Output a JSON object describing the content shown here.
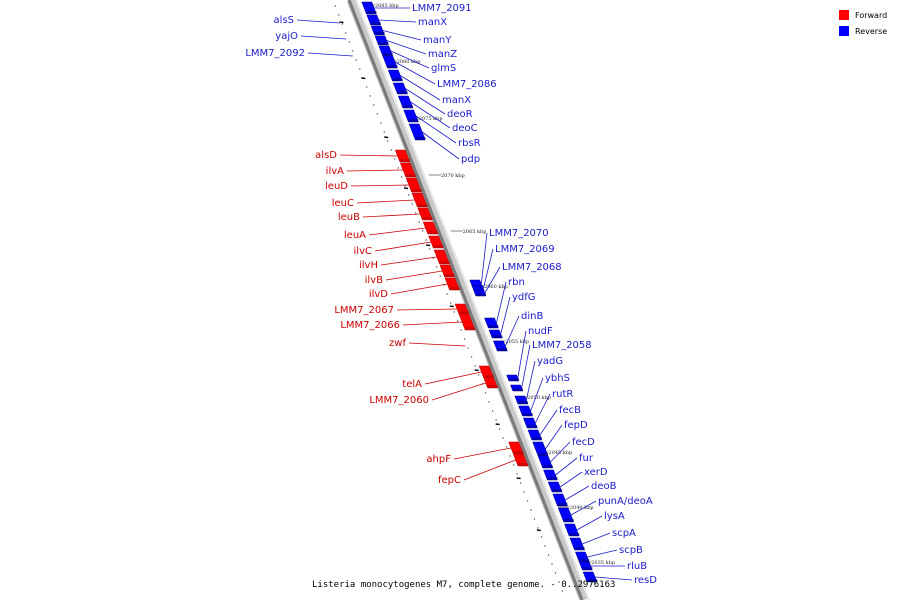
{
  "caption": "Listeria monocytogenes M7, complete genome. - 0..2976163",
  "legend": {
    "forward": {
      "label": "Forward",
      "color": "#ff0000"
    },
    "reverse": {
      "label": "Reverse",
      "color": "#0000ff"
    }
  },
  "colors": {
    "forward": "#ff0000",
    "forward_dark": "#b00000",
    "reverse": "#0000ff",
    "reverse_dark": "#00007a",
    "forward_label": "#cc0000",
    "reverse_label": "#1a1acc",
    "backbone": "#7a7a7a",
    "backbone_light": "#c8c8c8"
  },
  "ticks": [
    "2085 kbp",
    "2080 kbp",
    "2075 kbp",
    "2070 kbp",
    "2065 kbp",
    "2060 kbp",
    "2055 kbp",
    "2050 kbp",
    "2045 kbp",
    "2040 kbp",
    "2035 kbp"
  ],
  "genes": [
    {
      "name": "alsS",
      "strand": "left",
      "color": "reverse"
    },
    {
      "name": "yajO",
      "strand": "left",
      "color": "reverse"
    },
    {
      "name": "LMM7_2092",
      "strand": "left",
      "color": "reverse"
    },
    {
      "name": "LMM7_2091",
      "strand": "right",
      "color": "reverse"
    },
    {
      "name": "manX",
      "strand": "right",
      "color": "reverse"
    },
    {
      "name": "manY",
      "strand": "right",
      "color": "reverse"
    },
    {
      "name": "manZ",
      "strand": "right",
      "color": "reverse"
    },
    {
      "name": "glmS",
      "strand": "right",
      "color": "reverse"
    },
    {
      "name": "LMM7_2086",
      "strand": "right",
      "color": "reverse"
    },
    {
      "name": "manX",
      "strand": "right",
      "color": "reverse"
    },
    {
      "name": "deoR",
      "strand": "right",
      "color": "reverse"
    },
    {
      "name": "deoC",
      "strand": "right",
      "color": "reverse"
    },
    {
      "name": "rbsR",
      "strand": "right",
      "color": "reverse"
    },
    {
      "name": "pdp",
      "strand": "right",
      "color": "reverse"
    },
    {
      "name": "alsD",
      "strand": "left",
      "color": "forward"
    },
    {
      "name": "ilvA",
      "strand": "left",
      "color": "forward"
    },
    {
      "name": "leuD",
      "strand": "left",
      "color": "forward"
    },
    {
      "name": "leuC",
      "strand": "left",
      "color": "forward"
    },
    {
      "name": "leuB",
      "strand": "left",
      "color": "forward"
    },
    {
      "name": "leuA",
      "strand": "left",
      "color": "forward"
    },
    {
      "name": "ilvC",
      "strand": "left",
      "color": "forward"
    },
    {
      "name": "ilvH",
      "strand": "left",
      "color": "forward"
    },
    {
      "name": "ilvB",
      "strand": "left",
      "color": "forward"
    },
    {
      "name": "ilvD",
      "strand": "left",
      "color": "forward"
    },
    {
      "name": "LMM7_2070",
      "strand": "right",
      "color": "reverse"
    },
    {
      "name": "LMM7_2069",
      "strand": "right",
      "color": "reverse"
    },
    {
      "name": "LMM7_2068",
      "strand": "right",
      "color": "reverse"
    },
    {
      "name": "rbn",
      "strand": "right",
      "color": "reverse"
    },
    {
      "name": "ydfG",
      "strand": "right",
      "color": "reverse"
    },
    {
      "name": "LMM7_2067",
      "strand": "left",
      "color": "forward"
    },
    {
      "name": "LMM7_2066",
      "strand": "left",
      "color": "forward"
    },
    {
      "name": "dinB",
      "strand": "right",
      "color": "reverse"
    },
    {
      "name": "zwf",
      "strand": "left",
      "color": "forward"
    },
    {
      "name": "nudF",
      "strand": "right",
      "color": "reverse"
    },
    {
      "name": "LMM7_2058",
      "strand": "right",
      "color": "reverse"
    },
    {
      "name": "yadG",
      "strand": "right",
      "color": "reverse"
    },
    {
      "name": "ybhS",
      "strand": "right",
      "color": "reverse"
    },
    {
      "name": "telA",
      "strand": "left",
      "color": "forward"
    },
    {
      "name": "rutR",
      "strand": "right",
      "color": "reverse"
    },
    {
      "name": "LMM7_2060",
      "strand": "left",
      "color": "forward"
    },
    {
      "name": "fecB",
      "strand": "right",
      "color": "reverse"
    },
    {
      "name": "fepD",
      "strand": "right",
      "color": "reverse"
    },
    {
      "name": "fecD",
      "strand": "right",
      "color": "reverse"
    },
    {
      "name": "ahpF",
      "strand": "left",
      "color": "forward"
    },
    {
      "name": "fur",
      "strand": "right",
      "color": "reverse"
    },
    {
      "name": "xerD",
      "strand": "right",
      "color": "reverse"
    },
    {
      "name": "fepC",
      "strand": "left",
      "color": "forward"
    },
    {
      "name": "deoB",
      "strand": "right",
      "color": "reverse"
    },
    {
      "name": "punA/deoA",
      "strand": "right",
      "color": "reverse"
    },
    {
      "name": "lysA",
      "strand": "right",
      "color": "reverse"
    },
    {
      "name": "scpA",
      "strand": "right",
      "color": "reverse"
    },
    {
      "name": "scpB",
      "strand": "right",
      "color": "reverse"
    },
    {
      "name": "rluB",
      "strand": "right",
      "color": "reverse"
    },
    {
      "name": "resD",
      "strand": "right",
      "color": "reverse"
    }
  ]
}
